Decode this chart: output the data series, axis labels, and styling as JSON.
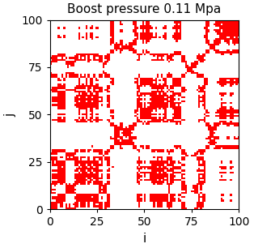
{
  "title": "Boost pressure 0.11 Mpa",
  "xlabel": "i",
  "ylabel": "j",
  "xlim": [
    0,
    100
  ],
  "ylim": [
    0,
    100
  ],
  "xticks": [
    0,
    25,
    50,
    75,
    100
  ],
  "yticks": [
    0,
    25,
    50,
    75,
    100
  ],
  "dot_color": "#FF0000",
  "bg_color": "#FFFFFF",
  "figsize": [
    3.14,
    3.06
  ],
  "dpi": 100,
  "title_fontsize": 11,
  "label_fontsize": 11,
  "n": 101,
  "signal_seed": 7,
  "threshold": 0.55
}
